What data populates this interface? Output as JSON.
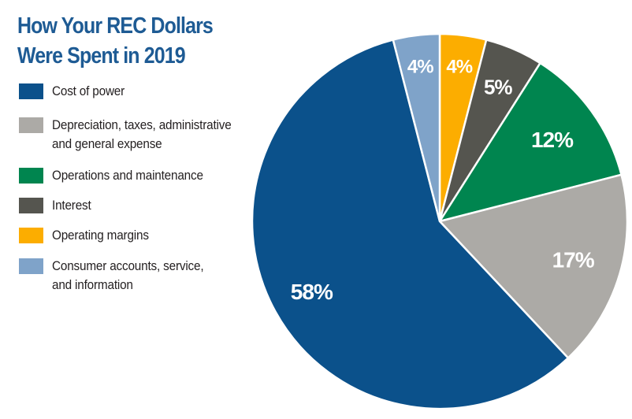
{
  "chart_data": {
    "type": "pie",
    "title_lines": [
      "How Your REC Dollars",
      "Were Spent in 2019"
    ],
    "slices": [
      {
        "label": "Cost of power",
        "value": 58,
        "display": "58%",
        "color": "#0b518b"
      },
      {
        "label": "Depreciation, taxes, administrative\nand general expense",
        "value": 17,
        "display": "17%",
        "color": "#acaaa6"
      },
      {
        "label": "Operations and maintenance",
        "value": 12,
        "display": "12%",
        "color": "#00854f"
      },
      {
        "label": "Interest",
        "value": 5,
        "display": "5%",
        "color": "#55554f"
      },
      {
        "label": "Operating margins",
        "value": 4,
        "display": "4%",
        "color": "#fcad00"
      },
      {
        "label": "Consumer accounts, service,\nand information",
        "value": 4,
        "display": "4%",
        "color": "#7fa3c9"
      }
    ],
    "legend_placement": "left"
  }
}
